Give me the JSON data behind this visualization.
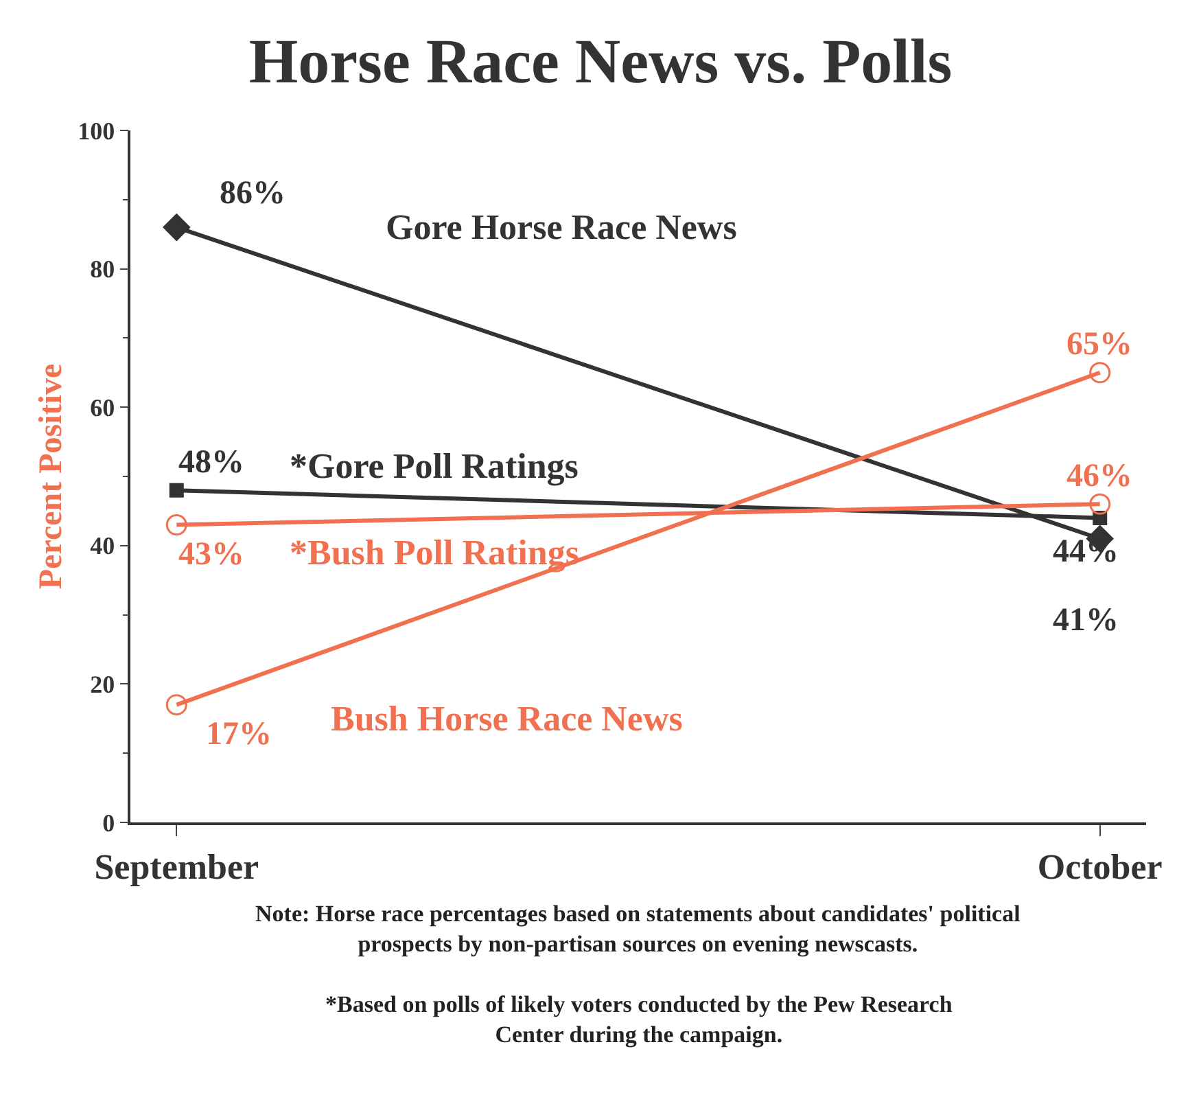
{
  "chart_data": {
    "type": "line",
    "title": "Horse Race News vs. Polls",
    "ylabel": "Percent Positive",
    "categories": [
      "September",
      "October"
    ],
    "series": [
      {
        "name": "Gore Horse Race News",
        "color": "#333333",
        "marker": "diamond",
        "values": [
          86,
          41
        ],
        "value_labels": [
          "86%",
          "41%"
        ]
      },
      {
        "name": "*Gore Poll Ratings",
        "color": "#333333",
        "marker": "square",
        "values": [
          48,
          44
        ],
        "value_labels": [
          "48%",
          "44%"
        ]
      },
      {
        "name": "*Bush Poll Ratings",
        "color": "#f07050",
        "marker": "circle",
        "values": [
          43,
          46
        ],
        "value_labels": [
          "43%",
          "46%"
        ]
      },
      {
        "name": "Bush Horse Race News",
        "color": "#f07050",
        "marker": "circle",
        "values": [
          17,
          65
        ],
        "value_labels": [
          "17%",
          "65%"
        ]
      }
    ],
    "ylim": [
      0,
      100
    ],
    "yticks": [
      0,
      20,
      40,
      60,
      80,
      100
    ],
    "legend": false,
    "line_style": "solid",
    "annotations": [
      "Note: Horse race percentages based on statements about candidates' political prospects by non-partisan sources on evening newscasts.",
      "*Based on polls of likely voters conducted by the Pew Research Center during the campaign."
    ]
  }
}
